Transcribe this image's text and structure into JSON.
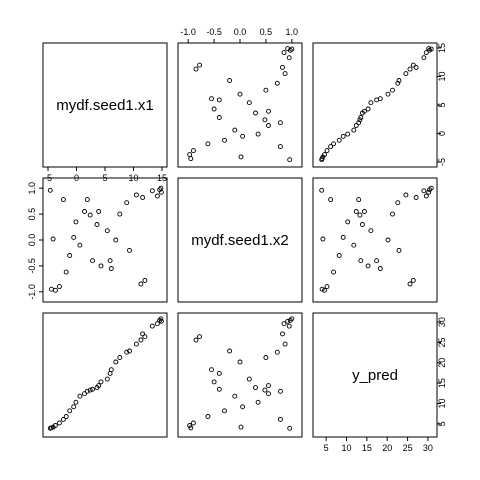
{
  "chart_data": {
    "type": "scatter",
    "kind": "pairs-matrix",
    "title": "",
    "variables": [
      {
        "name": "mydf.seed1.x1",
        "range": [
          -5,
          15
        ],
        "ticks": [
          -5,
          0,
          5,
          10,
          15
        ],
        "tick_labels": [
          "-5",
          "0",
          "5",
          "10",
          "15"
        ]
      },
      {
        "name": "mydf.seed1.x2",
        "range": [
          -1.1,
          1.1
        ],
        "ticks": [
          -1.0,
          -0.5,
          0.0,
          0.5,
          1.0
        ],
        "tick_labels": [
          "-1.0",
          "-0.5",
          "0.0",
          "0.5",
          "1.0"
        ]
      },
      {
        "name": "y_pred",
        "range": [
          3,
          31
        ],
        "ticks": [
          5,
          10,
          15,
          20,
          25,
          30
        ],
        "tick_labels": [
          "5",
          "10",
          "15",
          "20",
          "25",
          "30"
        ]
      }
    ],
    "axis_ticks": {
      "top": 1,
      "right": 0,
      "left": 1,
      "bottom": 0,
      "right_lower": 2,
      "bottom_right": 2
    },
    "points": [
      {
        "x1": 14.8,
        "x2": 1.0,
        "y_pred": 30.8
      },
      {
        "x1": 14.6,
        "x2": 0.97,
        "y_pred": 30.4
      },
      {
        "x1": 14.9,
        "x2": 0.92,
        "y_pred": 30.2
      },
      {
        "x1": 14.2,
        "x2": 0.85,
        "y_pred": 29.6
      },
      {
        "x1": 13.3,
        "x2": 0.95,
        "y_pred": 29.0
      },
      {
        "x1": 11.6,
        "x2": 0.82,
        "y_pred": 27.1
      },
      {
        "x1": 12.0,
        "x2": -0.78,
        "y_pred": 26.4
      },
      {
        "x1": 11.3,
        "x2": -0.85,
        "y_pred": 25.6
      },
      {
        "x1": 10.5,
        "x2": 0.87,
        "y_pred": 24.6
      },
      {
        "x1": 9.3,
        "x2": -0.2,
        "y_pred": 22.9
      },
      {
        "x1": 8.8,
        "x2": 0.72,
        "y_pred": 22.6
      },
      {
        "x1": 7.6,
        "x2": 0.5,
        "y_pred": 21.3
      },
      {
        "x1": 6.9,
        "x2": 0.0,
        "y_pred": 20.2
      },
      {
        "x1": 6.1,
        "x2": -0.55,
        "y_pred": 18.3
      },
      {
        "x1": 5.9,
        "x2": -0.4,
        "y_pred": 17.4
      },
      {
        "x1": 5.4,
        "x2": 0.18,
        "y_pred": 16.0
      },
      {
        "x1": 4.3,
        "x2": -0.5,
        "y_pred": 15.3
      },
      {
        "x1": 3.9,
        "x2": 0.55,
        "y_pred": 14.4
      },
      {
        "x1": 3.6,
        "x2": 0.3,
        "y_pred": 13.9
      },
      {
        "x1": 2.8,
        "x2": -0.4,
        "y_pred": 13.5
      },
      {
        "x1": 2.4,
        "x2": 0.48,
        "y_pred": 13.3
      },
      {
        "x1": 1.9,
        "x2": 0.78,
        "y_pred": 13.0
      },
      {
        "x1": 1.4,
        "x2": 0.55,
        "y_pred": 12.4
      },
      {
        "x1": 0.6,
        "x2": -0.1,
        "y_pred": 11.8
      },
      {
        "x1": -0.1,
        "x2": 0.35,
        "y_pred": 10.3
      },
      {
        "x1": -0.5,
        "x2": 0.05,
        "y_pred": 9.2
      },
      {
        "x1": -1.2,
        "x2": -0.3,
        "y_pred": 8.2
      },
      {
        "x1": -1.8,
        "x2": -0.62,
        "y_pred": 6.8
      },
      {
        "x1": -2.3,
        "x2": 0.78,
        "y_pred": 6.1
      },
      {
        "x1": -3.0,
        "x2": -0.9,
        "y_pred": 5.2
      },
      {
        "x1": -3.7,
        "x2": -0.97,
        "y_pred": 4.6
      },
      {
        "x1": -4.1,
        "x2": 0.02,
        "y_pred": 4.2
      },
      {
        "x1": -4.4,
        "x2": -0.95,
        "y_pred": 4.0
      },
      {
        "x1": -4.6,
        "x2": 0.96,
        "y_pred": 3.9
      }
    ]
  }
}
